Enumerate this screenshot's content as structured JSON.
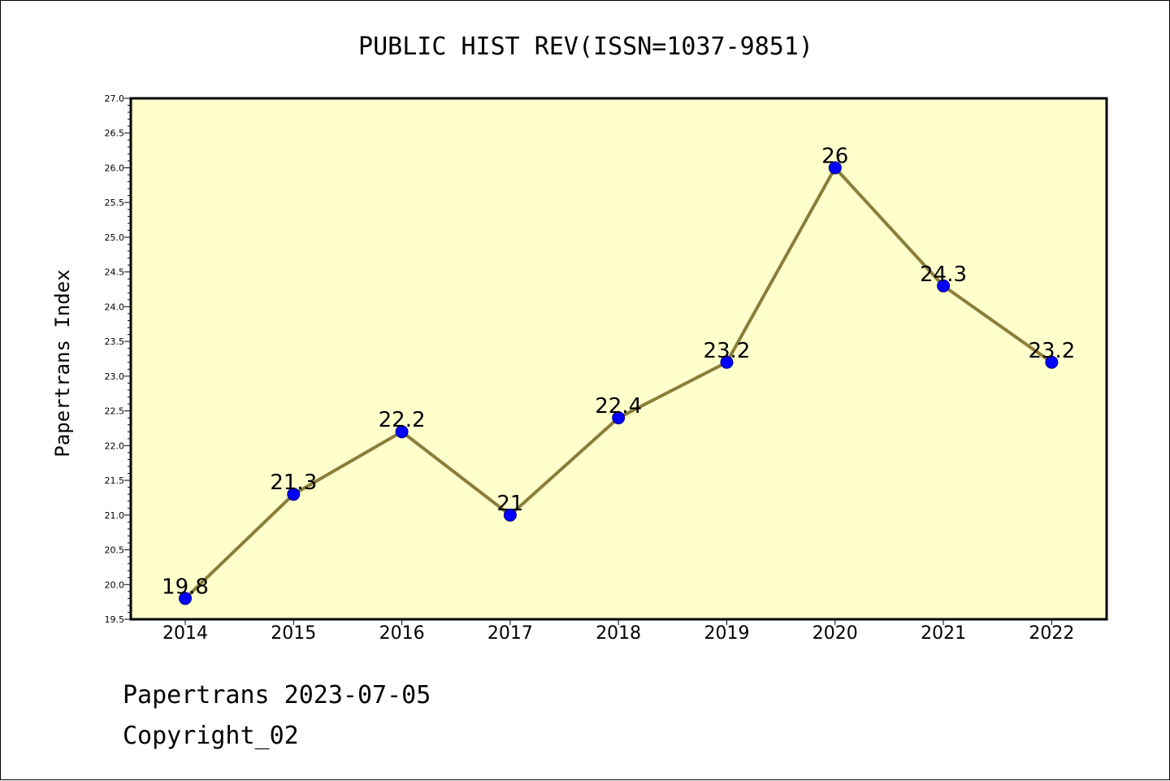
{
  "chart_data": {
    "type": "line",
    "title": "PUBLIC HIST REV(ISSN=1037-9851)",
    "ylabel": "Papertrans Index",
    "xlabel": "",
    "categories": [
      "2014",
      "2015",
      "2016",
      "2017",
      "2018",
      "2019",
      "2020",
      "2021",
      "2022"
    ],
    "series": [
      {
        "values": [
          19.8,
          21.3,
          22.2,
          21.0,
          22.4,
          23.2,
          26.0,
          24.3,
          23.2
        ],
        "data_labels": [
          "19.8",
          "21.3",
          "22.2",
          "21",
          "22.4",
          "23.2",
          "26",
          "24.3",
          "23.2"
        ]
      }
    ],
    "ylim": [
      19.5,
      27.0
    ],
    "yticks": [
      "19.5",
      "20.0",
      "20.5",
      "21.0",
      "21.5",
      "22.0",
      "22.5",
      "23.0",
      "23.5",
      "24.0",
      "24.5",
      "25.0",
      "25.5",
      "26.0",
      "26.5",
      "27.0"
    ],
    "grid": false,
    "colors": {
      "plot_background": "#ffffcc",
      "line": "#8b7e3a",
      "marker": "#0000ff",
      "marker_edge": "#000080"
    }
  },
  "footer": {
    "line1": "Papertrans 2023-07-05",
    "line2": "Copyright_02"
  }
}
